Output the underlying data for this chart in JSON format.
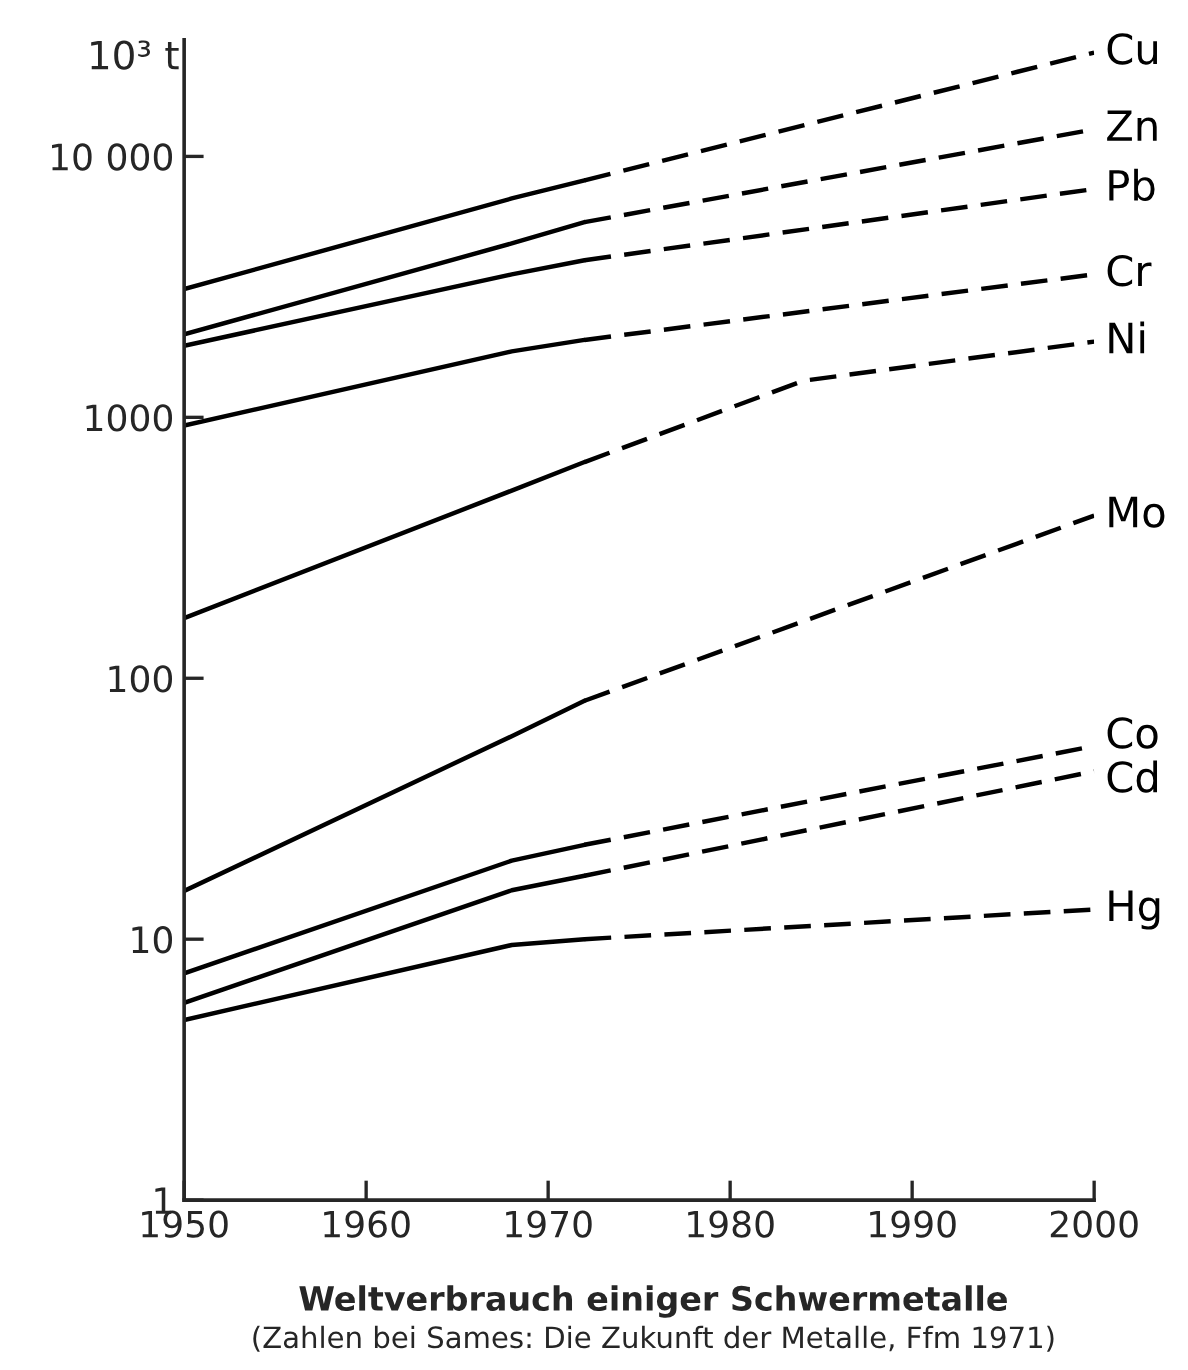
{
  "chart_data": {
    "type": "line",
    "title": "Weltverbrauch einiger Schwermetalle",
    "ylabel": "10³ t",
    "annotations": [
      "(Zahlen bei Sames: Die Zukunft der Metalle, Ffm 1971)"
    ],
    "log": "y",
    "xlim": [
      1950,
      2000
    ],
    "xticks": [
      1950,
      1960,
      1970,
      1980,
      1990,
      2000
    ],
    "ylim": [
      1,
      28000
    ],
    "yticks": [
      1,
      10,
      100,
      1000,
      {
        "value": 10000,
        "label": "10 000"
      }
    ],
    "grid": false,
    "legend": false,
    "marker": "none",
    "series": [
      {
        "color": "#000000",
        "line_style": "solid",
        "x": [
          1950,
          1968,
          1972
        ],
        "values": [
          3100,
          6900,
          8100
        ]
      },
      {
        "name": "Cu",
        "color": "#000000",
        "line_style": "dashed",
        "x": [
          1972,
          2000
        ],
        "values": [
          8100,
          25000
        ]
      },
      {
        "color": "#000000",
        "line_style": "solid",
        "x": [
          1950,
          1968,
          1972
        ],
        "values": [
          2080,
          4640,
          5600
        ]
      },
      {
        "name": "Zn",
        "color": "#000000",
        "line_style": "dashed",
        "x": [
          1972,
          2000
        ],
        "values": [
          5600,
          12700
        ]
      },
      {
        "color": "#000000",
        "line_style": "solid",
        "x": [
          1950,
          1968,
          1972
        ],
        "values": [
          1880,
          3530,
          4000
        ]
      },
      {
        "name": "Pb",
        "color": "#000000",
        "line_style": "dashed",
        "x": [
          1972,
          2000
        ],
        "values": [
          4000,
          7500
        ]
      },
      {
        "color": "#000000",
        "line_style": "solid",
        "x": [
          1950,
          1968,
          1972
        ],
        "values": [
          930,
          1790,
          1980
        ]
      },
      {
        "name": "Cr",
        "color": "#000000",
        "line_style": "dashed",
        "x": [
          1972,
          2000
        ],
        "values": [
          1980,
          3530
        ]
      },
      {
        "color": "#000000",
        "line_style": "solid",
        "x": [
          1950,
          1968,
          1972
        ],
        "values": [
          170,
          524,
          674
        ]
      },
      {
        "name": "Ni",
        "color": "#000000",
        "line_style": "dashed",
        "x": [
          1972,
          1984,
          2000
        ],
        "values": [
          674,
          1380,
          1950
        ]
      },
      {
        "color": "#000000",
        "line_style": "solid",
        "x": [
          1950,
          1968,
          1972
        ],
        "values": [
          15.3,
          60,
          82
        ]
      },
      {
        "name": "Mo",
        "color": "#000000",
        "line_style": "dashed",
        "x": [
          1972,
          2000
        ],
        "values": [
          82,
          420
        ]
      },
      {
        "color": "#000000",
        "line_style": "solid",
        "x": [
          1950,
          1968,
          1972
        ],
        "values": [
          7.4,
          20,
          23
        ]
      },
      {
        "name": "Co",
        "color": "#000000",
        "line_style": "dashed",
        "x": [
          1972,
          2000
        ],
        "values": [
          23,
          55
        ]
      },
      {
        "color": "#000000",
        "line_style": "solid",
        "x": [
          1950,
          1968,
          1972
        ],
        "values": [
          5.7,
          15.4,
          17.5
        ]
      },
      {
        "name": "Cd",
        "color": "#000000",
        "line_style": "dashed",
        "x": [
          1972,
          2000
        ],
        "values": [
          17.5,
          44
        ]
      },
      {
        "color": "#000000",
        "line_style": "solid",
        "x": [
          1950,
          1968,
          1972
        ],
        "values": [
          4.9,
          9.5,
          10
        ]
      },
      {
        "name": "Hg",
        "color": "#000000",
        "line_style": "dashed",
        "x": [
          1972,
          2000
        ],
        "values": [
          10,
          13
        ]
      }
    ]
  }
}
